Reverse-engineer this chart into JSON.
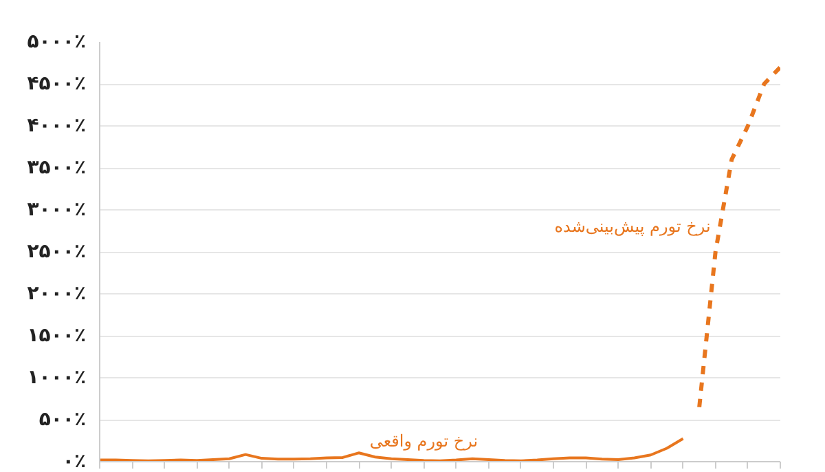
{
  "chart_data": {
    "type": "line",
    "categories": [
      null,
      null,
      null,
      null,
      null,
      null,
      null,
      null,
      null,
      null,
      null,
      null,
      null,
      null,
      null,
      null,
      null,
      null,
      null,
      null,
      null,
      null,
      null,
      null,
      null,
      null,
      null,
      null,
      null,
      null,
      null,
      null,
      null,
      null,
      null,
      null,
      null,
      null,
      null,
      null,
      null,
      null,
      null
    ],
    "series": [
      {
        "name": "نرخ تورم واقعی",
        "color": "#e8761e",
        "line_style": "solid",
        "values": [
          20,
          20,
          15,
          10,
          15,
          20,
          15,
          25,
          35,
          85,
          40,
          30,
          30,
          35,
          45,
          50,
          105,
          55,
          35,
          25,
          15,
          10,
          20,
          35,
          25,
          15,
          10,
          20,
          35,
          45,
          45,
          30,
          25,
          45,
          80,
          160,
          275,
          null,
          null,
          null,
          null,
          null,
          null
        ]
      },
      {
        "name": "نرخ تورم پیش‌بینی‌شده",
        "color": "#e8761e",
        "line_style": "dashed",
        "values": [
          null,
          null,
          null,
          null,
          null,
          null,
          null,
          null,
          null,
          null,
          null,
          null,
          null,
          null,
          null,
          null,
          null,
          null,
          null,
          null,
          null,
          null,
          null,
          null,
          null,
          null,
          null,
          null,
          null,
          null,
          null,
          null,
          null,
          null,
          null,
          null,
          null,
          650,
          2500,
          3600,
          4000,
          4500,
          4700
        ]
      }
    ],
    "ylim": [
      0,
      5000
    ],
    "yticks": [
      {
        "value": 0,
        "label": "۰٪"
      },
      {
        "value": 500,
        "label": "۵۰۰٪"
      },
      {
        "value": 1000,
        "label": "۱۰۰۰٪"
      },
      {
        "value": 1500,
        "label": "۱۵۰۰٪"
      },
      {
        "value": 2000,
        "label": "۲۰۰۰٪"
      },
      {
        "value": 2500,
        "label": "۲۵۰۰٪"
      },
      {
        "value": 3000,
        "label": "۳۰۰۰٪"
      },
      {
        "value": 3500,
        "label": "۳۵۰۰٪"
      },
      {
        "value": 4000,
        "label": "۴۰۰۰٪"
      },
      {
        "value": 4500,
        "label": "۴۵۰۰٪"
      },
      {
        "value": 5000,
        "label": "۵۰۰۰٪"
      }
    ],
    "grid": "y",
    "tick_labels": "y"
  }
}
